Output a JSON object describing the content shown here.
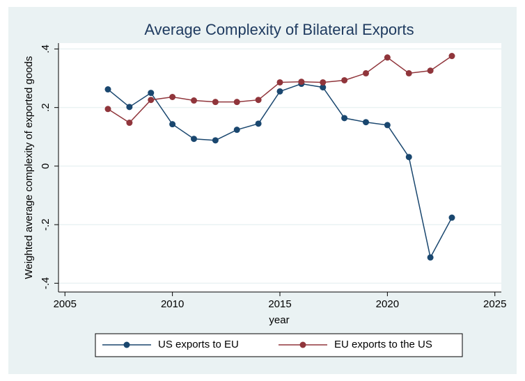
{
  "chart_data": {
    "type": "line",
    "title": "Average Complexity of Bilateral Exports",
    "x_label": "year",
    "y_label": "Weighted average complexity of exported goods",
    "x": [
      2007,
      2008,
      2009,
      2010,
      2011,
      2012,
      2013,
      2014,
      2015,
      2016,
      2017,
      2018,
      2019,
      2020,
      2021,
      2022,
      2023
    ],
    "series": [
      {
        "name": "US exports to EU",
        "color": "#1a476f",
        "values": [
          0.262,
          0.202,
          0.25,
          0.143,
          0.093,
          0.088,
          0.124,
          0.145,
          0.255,
          0.281,
          0.269,
          0.164,
          0.15,
          0.14,
          0.031,
          -0.312,
          -0.176
        ]
      },
      {
        "name": "EU exports to the US",
        "color": "#90353b",
        "values": [
          0.195,
          0.148,
          0.226,
          0.236,
          0.224,
          0.219,
          0.219,
          0.226,
          0.286,
          0.288,
          0.286,
          0.293,
          0.317,
          0.371,
          0.317,
          0.326,
          0.376
        ]
      }
    ],
    "xlim": [
      2004.7,
      2025.3
    ],
    "xticks": [
      2005,
      2010,
      2015,
      2020,
      2025
    ],
    "ylim": [
      -0.43,
      0.42
    ],
    "yticks": [
      {
        "value": 0.4,
        "label": ".4"
      },
      {
        "value": 0.2,
        "label": ".2"
      },
      0,
      {
        "value": -0.2,
        "label": "-.2"
      },
      {
        "value": -0.4,
        "label": "-.4"
      }
    ],
    "grid": true,
    "legend": "bottom"
  }
}
